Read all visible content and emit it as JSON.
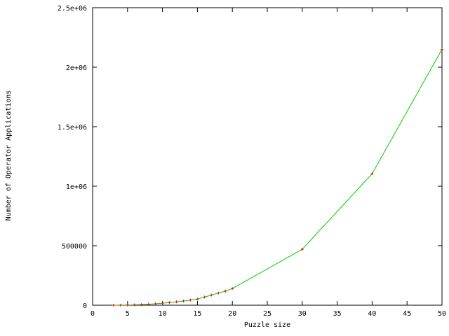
{
  "chart_data": {
    "type": "line",
    "title": "",
    "xlabel": "Puzzle size",
    "ylabel": "Number of Operator Applications",
    "xlim": [
      0,
      50
    ],
    "ylim": [
      0,
      2500000
    ],
    "xticks": [
      0,
      5,
      10,
      15,
      20,
      25,
      30,
      35,
      40,
      45,
      50
    ],
    "yticks": [
      0,
      500000,
      1000000,
      1500000,
      2000000,
      2500000
    ],
    "xtick_labels": [
      "0",
      "5",
      "10",
      "15",
      "20",
      "25",
      "30",
      "35",
      "40",
      "45",
      "50"
    ],
    "ytick_labels": [
      "0",
      "500000",
      "1e+06",
      "1.5e+06",
      "2e+06",
      "2.5e+06"
    ],
    "grid": false,
    "legend": "none",
    "line_color": "#00cc00",
    "marker_color": "#ff0000",
    "marker": "plus",
    "series": [
      {
        "x": [
          3,
          4,
          5,
          6,
          7,
          8,
          9,
          10,
          11,
          12,
          13,
          14,
          15,
          16,
          17,
          18,
          19,
          20,
          30,
          40,
          50
        ],
        "y": [
          150,
          500,
          1500,
          3000,
          5000,
          8000,
          12000,
          17000,
          22000,
          28000,
          35000,
          43000,
          51000,
          68000,
          85000,
          102000,
          118000,
          140000,
          470000,
          1105000,
          2150000
        ]
      }
    ]
  }
}
